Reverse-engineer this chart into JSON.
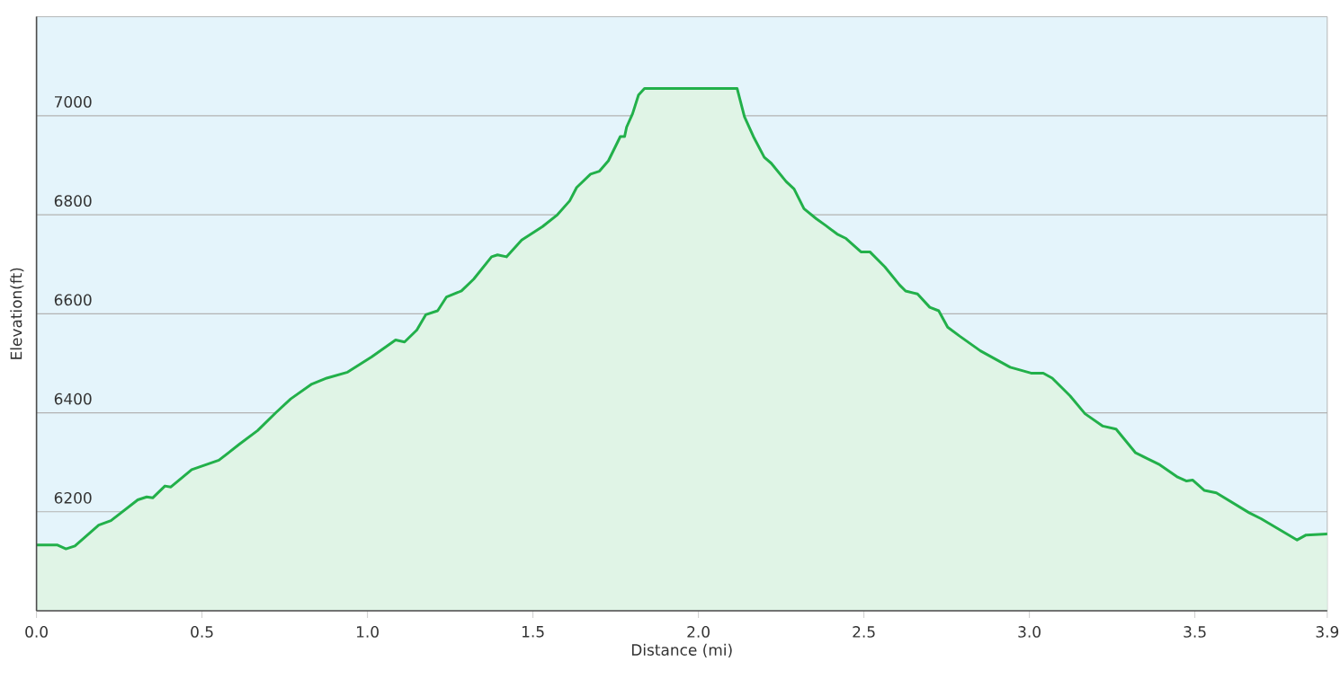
{
  "chart_data": {
    "type": "area",
    "xlabel": "Distance  (mi)",
    "ylabel": "Elevation(ft)",
    "x": [
      0,
      0.062,
      0.089,
      0.116,
      0.188,
      0.225,
      0.306,
      0.333,
      0.351,
      0.388,
      0.406,
      0.469,
      0.551,
      0.614,
      0.668,
      0.723,
      0.768,
      0.832,
      0.877,
      0.94,
      1.013,
      1.085,
      1.112,
      1.149,
      1.176,
      1.212,
      1.239,
      1.284,
      1.321,
      1.375,
      1.393,
      1.42,
      1.466,
      1.529,
      1.574,
      1.611,
      1.632,
      1.674,
      1.701,
      1.728,
      1.764,
      1.777,
      1.783,
      1.801,
      1.819,
      1.837,
      2.117,
      2.139,
      2.166,
      2.199,
      2.22,
      2.265,
      2.289,
      2.319,
      2.356,
      2.383,
      2.419,
      2.446,
      2.491,
      2.518,
      2.563,
      2.608,
      2.626,
      2.662,
      2.699,
      2.726,
      2.753,
      2.789,
      2.852,
      2.942,
      3.005,
      3.042,
      3.069,
      3.123,
      3.168,
      3.222,
      3.262,
      3.321,
      3.394,
      3.448,
      3.475,
      3.493,
      3.529,
      3.565,
      3.664,
      3.7,
      3.809,
      3.836,
      3.9
    ],
    "series": [
      {
        "color": "#22b04a",
        "values": [
          6133,
          6133,
          6125,
          6131,
          6173,
          6182,
          6224,
          6230,
          6228,
          6252,
          6250,
          6285,
          6304,
          6337,
          6364,
          6400,
          6428,
          6458,
          6470,
          6482,
          6513,
          6547,
          6543,
          6567,
          6598,
          6606,
          6634,
          6646,
          6670,
          6715,
          6719,
          6715,
          6749,
          6776,
          6800,
          6828,
          6855,
          6882,
          6888,
          6909,
          6958,
          6958,
          6977,
          7004,
          7042,
          7055,
          7055,
          6998,
          6958,
          6916,
          6904,
          6867,
          6852,
          6812,
          6792,
          6779,
          6761,
          6752,
          6725,
          6725,
          6695,
          6658,
          6646,
          6640,
          6613,
          6606,
          6573,
          6555,
          6525,
          6492,
          6480,
          6480,
          6470,
          6434,
          6398,
          6373,
          6367,
          6319,
          6295,
          6270,
          6262,
          6264,
          6243,
          6238,
          6198,
          6186,
          6143,
          6153,
          6155
        ]
      }
    ],
    "xlim": [
      0,
      3.9
    ],
    "ylim": [
      6000,
      7200
    ],
    "xticks": [
      {
        "value": 0,
        "label": "0.0"
      },
      0.5,
      {
        "value": 1,
        "label": "1.0"
      },
      1.5,
      {
        "value": 2,
        "label": "2.0"
      },
      2.5,
      {
        "value": 3,
        "label": "3.0"
      },
      3.5,
      3.9
    ],
    "yticks": [
      6200,
      6400,
      6600,
      6800,
      7000
    ],
    "grid": "y"
  }
}
